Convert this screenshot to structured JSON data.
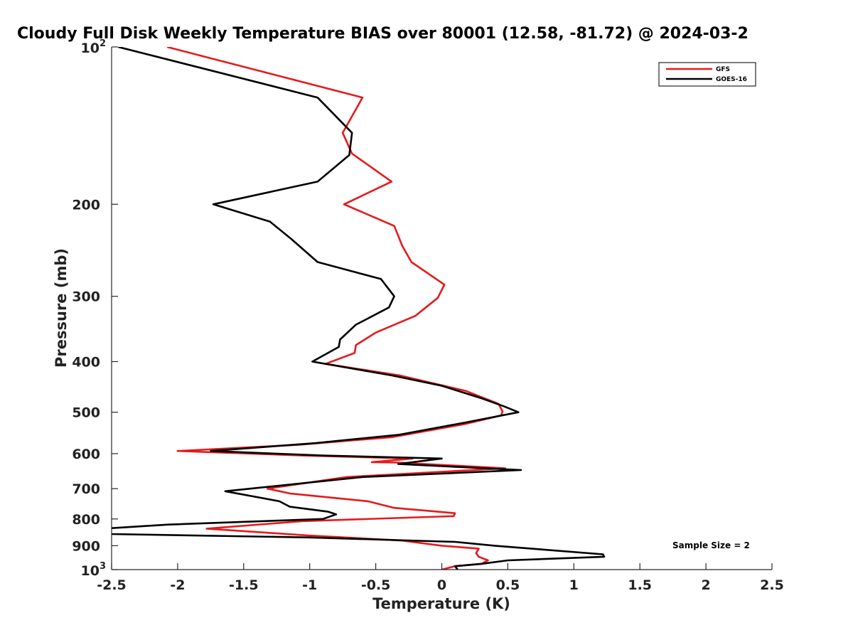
{
  "chart_data": {
    "type": "line",
    "title": "Cloudy Full Disk Weekly Temperature BIAS over 80001 (12.58, -81.72) @ 2024-03-2",
    "xlabel": "Temperature (K)",
    "ylabel": "Pressure (mb)",
    "xlim": [
      -2.5,
      2.5
    ],
    "ylim": [
      100,
      1000
    ],
    "y_scale": "log",
    "y_reversed": true,
    "x_ticks": [
      "-2.5",
      "-2",
      "-1.5",
      "-1",
      "-0.5",
      "0",
      "0.5",
      "1",
      "1.5",
      "2",
      "2.5"
    ],
    "y_ticks": [
      {
        "value": 100,
        "base": "10",
        "exp": "2"
      },
      {
        "value": 200,
        "label": "200"
      },
      {
        "value": 300,
        "label": "300"
      },
      {
        "value": 400,
        "label": "400"
      },
      {
        "value": 500,
        "label": "500"
      },
      {
        "value": 600,
        "label": "600"
      },
      {
        "value": 700,
        "label": "700"
      },
      {
        "value": 800,
        "label": "800"
      },
      {
        "value": 900,
        "label": "900"
      },
      {
        "value": 1000,
        "base": "10",
        "exp": "3"
      }
    ],
    "grid": false,
    "legend_position": "top-right",
    "annotation": "Sample Size = 2",
    "series": [
      {
        "name": "GFS",
        "color": "#e41a1c",
        "points": [
          [
            -2.08,
            100
          ],
          [
            -0.6,
            125
          ],
          [
            -0.75,
            146
          ],
          [
            -0.68,
            160
          ],
          [
            -0.38,
            181
          ],
          [
            -0.74,
            200
          ],
          [
            -0.36,
            220
          ],
          [
            -0.3,
            240
          ],
          [
            -0.23,
            258
          ],
          [
            0.02,
            285
          ],
          [
            -0.03,
            302
          ],
          [
            -0.2,
            327
          ],
          [
            -0.5,
            352
          ],
          [
            -0.65,
            372
          ],
          [
            -0.66,
            385
          ],
          [
            -0.88,
            404
          ],
          [
            -0.32,
            425
          ],
          [
            0.18,
            455
          ],
          [
            0.43,
            482
          ],
          [
            0.46,
            498
          ],
          [
            0.45,
            507
          ],
          [
            0.17,
            527
          ],
          [
            -0.38,
            558
          ],
          [
            -1.08,
            577
          ],
          [
            -2.0,
            593
          ],
          [
            -1.05,
            605
          ],
          [
            -0.22,
            613
          ],
          [
            -0.53,
            623
          ],
          [
            -0.33,
            624
          ],
          [
            0.48,
            640
          ],
          [
            -0.72,
            665
          ],
          [
            -1.32,
            700
          ],
          [
            -1.15,
            715
          ],
          [
            -0.56,
            740
          ],
          [
            -0.36,
            762
          ],
          [
            0.1,
            780
          ],
          [
            0.09,
            790
          ],
          [
            -1.06,
            808
          ],
          [
            -1.78,
            835
          ],
          [
            -1.02,
            860
          ],
          [
            -0.3,
            880
          ],
          [
            0.0,
            900
          ],
          [
            0.28,
            912
          ],
          [
            0.26,
            930
          ],
          [
            0.28,
            945
          ],
          [
            0.35,
            960
          ],
          [
            0.3,
            975
          ],
          [
            0.1,
            985
          ],
          [
            0.0,
            1000
          ]
        ]
      },
      {
        "name": "GOES-16",
        "color": "#000000",
        "points": [
          [
            -2.45,
            100
          ],
          [
            -0.94,
            125
          ],
          [
            -0.68,
            146
          ],
          [
            -0.7,
            161
          ],
          [
            -0.94,
            181
          ],
          [
            -1.73,
            200
          ],
          [
            -1.3,
            216
          ],
          [
            -1.14,
            233
          ],
          [
            -0.94,
            258
          ],
          [
            -0.46,
            278
          ],
          [
            -0.36,
            300
          ],
          [
            -0.4,
            315
          ],
          [
            -0.65,
            340
          ],
          [
            -0.77,
            363
          ],
          [
            -0.78,
            375
          ],
          [
            -0.98,
            400
          ],
          [
            -0.38,
            425
          ],
          [
            0.0,
            445
          ],
          [
            0.3,
            470
          ],
          [
            0.47,
            487
          ],
          [
            0.58,
            500
          ],
          [
            0.18,
            523
          ],
          [
            -0.32,
            552
          ],
          [
            -0.96,
            573
          ],
          [
            -1.75,
            593
          ],
          [
            -0.9,
            605
          ],
          [
            0.0,
            613
          ],
          [
            -0.33,
            628
          ],
          [
            0.6,
            645
          ],
          [
            -0.6,
            665
          ],
          [
            -1.64,
            708
          ],
          [
            -1.23,
            740
          ],
          [
            -1.15,
            758
          ],
          [
            -0.86,
            775
          ],
          [
            -0.8,
            784
          ],
          [
            -0.9,
            800
          ],
          [
            -2.07,
            820
          ],
          [
            -2.6,
            836
          ],
          [
            -2.5,
            855
          ],
          [
            -1.0,
            868
          ],
          [
            0.1,
            885
          ],
          [
            0.4,
            900
          ],
          [
            0.75,
            915
          ],
          [
            1.22,
            935
          ],
          [
            1.23,
            945
          ],
          [
            0.5,
            960
          ],
          [
            0.3,
            975
          ],
          [
            0.1,
            985
          ],
          [
            0.12,
            1000
          ]
        ]
      }
    ]
  }
}
